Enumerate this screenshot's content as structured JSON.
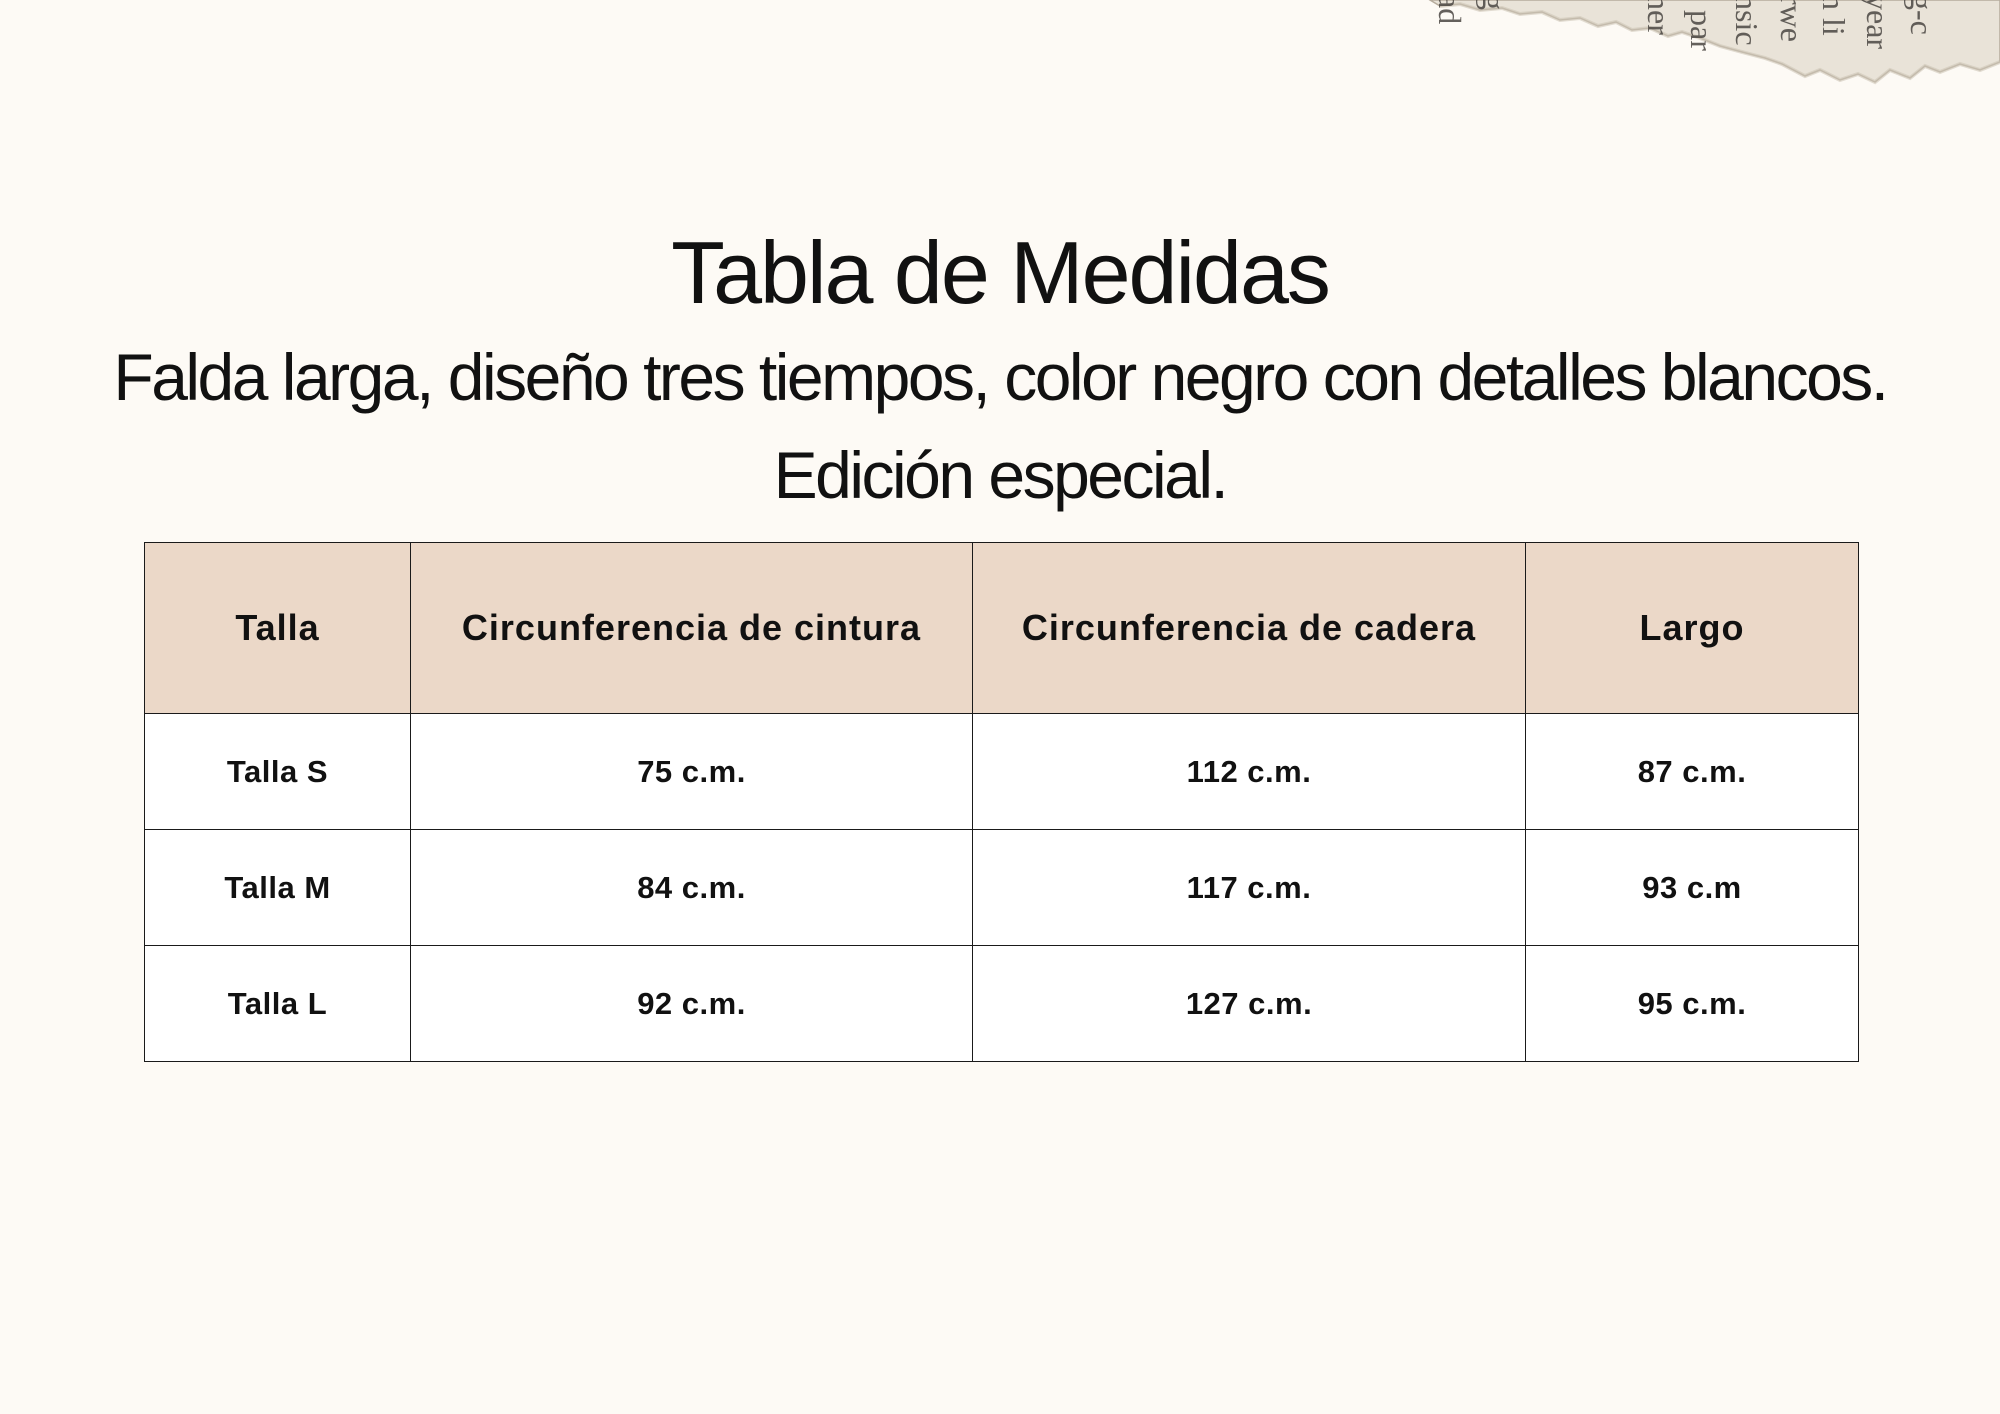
{
  "page": {
    "title": "Tabla de Medidas",
    "subtitle": "Falda larga, diseño tres tiempos, color negro con detalles blancos. Edición especial."
  },
  "decoration": {
    "torn_paper_fragments": [
      "ad",
      "g",
      "ner",
      "par",
      "nsic",
      "rwe",
      "n li",
      "year",
      "g-c"
    ]
  },
  "table": {
    "headers": [
      "Talla",
      "Circunferencia de cintura",
      "Circunferencia de cadera",
      "Largo"
    ],
    "rows": [
      [
        "Talla S",
        "75 c.m.",
        "112 c.m.",
        "87 c.m."
      ],
      [
        "Talla M",
        "84 c.m.",
        "117 c.m.",
        "93 c.m"
      ],
      [
        "Talla L",
        "92 c.m.",
        "127 c.m.",
        "95 c.m."
      ]
    ]
  },
  "colors": {
    "background": "#fdfaf5",
    "header_fill": "#ebd8c8",
    "border": "#1a1a1a",
    "text": "#111111"
  }
}
